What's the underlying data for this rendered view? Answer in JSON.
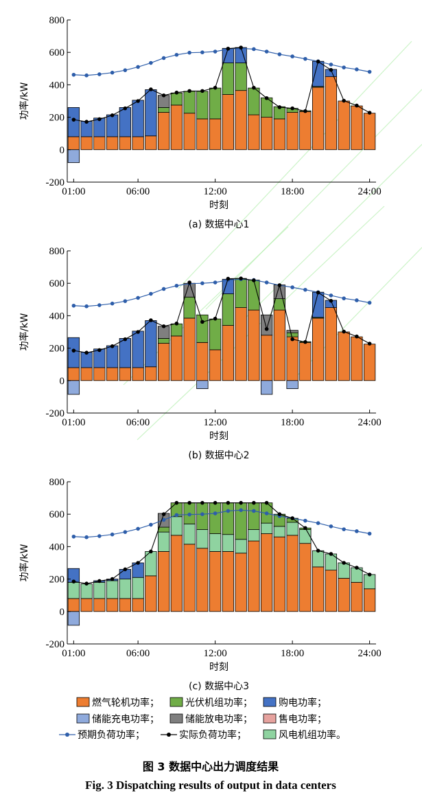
{
  "colors": {
    "gas": "#ED7D31",
    "pv": "#70AD47",
    "grid_buy": "#4472C4",
    "ess_charge": "#8FAADC",
    "ess_discharge": "#7F7F7F",
    "grid_sell": "#E6A29E",
    "wind": "#8FD3A0",
    "expected_line": "#2E5EAA",
    "actual_line": "#000000",
    "watermark": "#B6EFB0"
  },
  "x_axis_label": "时刻",
  "y_axis_label": "功率/kW",
  "figure_caption_cn": "图 3   数据中心出力调度结果",
  "figure_caption_en": "Fig. 3   Dispatching results of output in data centers",
  "legend": {
    "row1": [
      "燃气轮机功率；",
      "光伏机组功率；",
      "购电功率；"
    ],
    "row2": [
      "储能充电功率；",
      "储能放电功率；",
      "售电功率；"
    ],
    "row3": [
      "预期负荷功率；",
      "实际负荷功率；",
      "风电机组功率。"
    ]
  },
  "chart_data": [
    {
      "type": "bar",
      "subtitle": "(a) 数据中心1",
      "xlabel": "时刻",
      "ylabel": "功率/kW",
      "ylim": [
        -200,
        800
      ],
      "yticks": [
        "800",
        "600",
        "400",
        "200",
        "0",
        "-200"
      ],
      "xticks": [
        "01:00",
        "06:00",
        "12:00",
        "18:00",
        "24:00"
      ],
      "stacked": true,
      "hours": [
        1,
        2,
        3,
        4,
        5,
        6,
        7,
        8,
        9,
        10,
        11,
        12,
        13,
        14,
        15,
        16,
        17,
        18,
        19,
        20,
        21,
        22,
        23,
        24
      ],
      "series": [
        {
          "name": "燃气轮机功率",
          "key": "gas",
          "values": [
            80,
            80,
            80,
            80,
            80,
            80,
            85,
            230,
            275,
            225,
            190,
            190,
            340,
            365,
            215,
            200,
            190,
            230,
            235,
            385,
            450,
            300,
            270,
            225
          ]
        },
        {
          "name": "光伏机组功率",
          "key": "pv",
          "values": [
            0,
            0,
            0,
            0,
            0,
            0,
            0,
            30,
            75,
            135,
            170,
            190,
            195,
            170,
            165,
            120,
            75,
            25,
            5,
            5,
            0,
            0,
            0,
            0
          ]
        },
        {
          "name": "购电功率",
          "key": "grid_buy",
          "values": [
            180,
            95,
            115,
            135,
            180,
            225,
            285,
            0,
            0,
            0,
            0,
            0,
            90,
            95,
            0,
            0,
            0,
            0,
            0,
            155,
            45,
            0,
            0,
            0
          ]
        },
        {
          "name": "储能充电功率",
          "key": "ess_charge",
          "values": [
            -80,
            0,
            0,
            0,
            0,
            0,
            0,
            0,
            0,
            0,
            0,
            0,
            0,
            0,
            0,
            0,
            0,
            0,
            0,
            0,
            0,
            0,
            0,
            0
          ]
        },
        {
          "name": "储能放电功率",
          "key": "ess_discharge",
          "values": [
            0,
            0,
            0,
            0,
            0,
            0,
            0,
            75,
            0,
            0,
            0,
            0,
            0,
            0,
            0,
            0,
            0,
            0,
            0,
            0,
            0,
            0,
            0,
            0
          ]
        },
        {
          "name": "售电功率",
          "key": "grid_sell",
          "values": [
            0,
            0,
            0,
            0,
            0,
            0,
            0,
            0,
            0,
            0,
            0,
            0,
            0,
            0,
            0,
            0,
            0,
            0,
            0,
            0,
            0,
            0,
            0,
            0
          ]
        },
        {
          "name": "风电机组功率",
          "key": "wind",
          "values": [
            0,
            0,
            0,
            0,
            0,
            0,
            0,
            0,
            0,
            0,
            0,
            0,
            0,
            0,
            0,
            0,
            0,
            0,
            0,
            0,
            0,
            0,
            0,
            0
          ]
        }
      ],
      "expected_load": [
        462,
        458,
        465,
        475,
        490,
        510,
        535,
        565,
        585,
        598,
        600,
        605,
        620,
        625,
        620,
        605,
        588,
        575,
        560,
        545,
        525,
        507,
        495,
        480
      ],
      "actual_load": [
        185,
        172,
        188,
        212,
        255,
        300,
        372,
        335,
        352,
        362,
        362,
        382,
        623,
        630,
        382,
        318,
        262,
        255,
        238,
        543,
        492,
        302,
        272,
        228
      ]
    },
    {
      "type": "bar",
      "subtitle": "(b) 数据中心2",
      "xlabel": "时刻",
      "ylabel": "功率/kW",
      "ylim": [
        -200,
        800
      ],
      "yticks": [
        "800",
        "600",
        "400",
        "200",
        "0",
        "-200"
      ],
      "xticks": [
        "01:00",
        "06:00",
        "12:00",
        "18:00",
        "24:00"
      ],
      "stacked": true,
      "hours": [
        1,
        2,
        3,
        4,
        5,
        6,
        7,
        8,
        9,
        10,
        11,
        12,
        13,
        14,
        15,
        16,
        17,
        18,
        19,
        20,
        21,
        22,
        23,
        24
      ],
      "series": [
        {
          "name": "燃气轮机功率",
          "key": "gas",
          "values": [
            80,
            80,
            80,
            80,
            80,
            80,
            85,
            230,
            275,
            385,
            235,
            190,
            340,
            450,
            435,
            280,
            435,
            270,
            235,
            385,
            450,
            300,
            270,
            225
          ]
        },
        {
          "name": "光伏机组功率",
          "key": "pv",
          "values": [
            0,
            0,
            0,
            0,
            0,
            0,
            0,
            30,
            75,
            130,
            170,
            190,
            195,
            180,
            185,
            0,
            70,
            25,
            5,
            5,
            0,
            0,
            0,
            0
          ]
        },
        {
          "name": "购电功率",
          "key": "grid_buy",
          "values": [
            185,
            95,
            115,
            135,
            180,
            225,
            285,
            0,
            0,
            0,
            0,
            0,
            90,
            0,
            0,
            0,
            0,
            0,
            0,
            155,
            45,
            0,
            0,
            0
          ]
        },
        {
          "name": "储能充电功率",
          "key": "ess_charge",
          "values": [
            -85,
            0,
            0,
            0,
            0,
            0,
            0,
            0,
            0,
            0,
            -50,
            0,
            0,
            0,
            0,
            -85,
            0,
            -50,
            0,
            0,
            0,
            0,
            0,
            0
          ]
        },
        {
          "name": "储能放电功率",
          "key": "ess_discharge",
          "values": [
            0,
            0,
            0,
            0,
            0,
            0,
            0,
            75,
            0,
            85,
            0,
            0,
            0,
            0,
            0,
            125,
            85,
            15,
            0,
            0,
            0,
            0,
            0,
            0
          ]
        },
        {
          "name": "售电功率",
          "key": "grid_sell",
          "values": [
            0,
            0,
            0,
            0,
            0,
            0,
            0,
            0,
            0,
            0,
            0,
            0,
            0,
            0,
            0,
            0,
            0,
            0,
            0,
            0,
            0,
            0,
            0,
            0
          ]
        },
        {
          "name": "风电机组功率",
          "key": "wind",
          "values": [
            0,
            0,
            0,
            0,
            0,
            0,
            0,
            0,
            0,
            0,
            0,
            0,
            0,
            0,
            0,
            0,
            0,
            0,
            0,
            0,
            0,
            0,
            0,
            0
          ]
        }
      ],
      "expected_load": [
        462,
        458,
        465,
        475,
        490,
        510,
        535,
        565,
        585,
        598,
        600,
        605,
        620,
        625,
        620,
        605,
        588,
        575,
        560,
        545,
        525,
        507,
        495,
        480
      ],
      "actual_load": [
        185,
        172,
        188,
        212,
        255,
        300,
        372,
        335,
        352,
        605,
        362,
        382,
        628,
        630,
        618,
        318,
        588,
        255,
        238,
        543,
        492,
        302,
        272,
        228
      ]
    },
    {
      "type": "bar",
      "subtitle": "(c) 数据中心3",
      "xlabel": "时刻",
      "ylabel": "功率/kW",
      "ylim": [
        -200,
        800
      ],
      "yticks": [
        "800",
        "600",
        "400",
        "200",
        "0",
        "-200"
      ],
      "xticks": [
        "01:00",
        "06:00",
        "12:00",
        "18:00",
        "24:00"
      ],
      "stacked": true,
      "hours": [
        1,
        2,
        3,
        4,
        5,
        6,
        7,
        8,
        9,
        10,
        11,
        12,
        13,
        14,
        15,
        16,
        17,
        18,
        19,
        20,
        21,
        22,
        23,
        24
      ],
      "series": [
        {
          "name": "燃气轮机功率",
          "key": "gas",
          "values": [
            80,
            80,
            80,
            80,
            80,
            80,
            220,
            370,
            470,
            415,
            390,
            370,
            370,
            360,
            435,
            480,
            460,
            470,
            420,
            275,
            255,
            205,
            180,
            140
          ]
        },
        {
          "name": "光伏机组功率",
          "key": "pv",
          "values": [
            0,
            0,
            0,
            0,
            0,
            0,
            0,
            30,
            85,
            130,
            165,
            190,
            195,
            225,
            165,
            125,
            75,
            25,
            10,
            0,
            0,
            0,
            0,
            0
          ]
        },
        {
          "name": "购电功率",
          "key": "grid_buy",
          "values": [
            85,
            0,
            10,
            10,
            60,
            90,
            0,
            0,
            0,
            0,
            0,
            0,
            0,
            0,
            0,
            0,
            0,
            0,
            0,
            0,
            0,
            0,
            0,
            0
          ]
        },
        {
          "name": "储能充电功率",
          "key": "ess_charge",
          "values": [
            -85,
            0,
            0,
            0,
            0,
            0,
            0,
            0,
            0,
            0,
            0,
            0,
            0,
            0,
            0,
            0,
            0,
            0,
            0,
            0,
            0,
            0,
            0,
            0
          ]
        },
        {
          "name": "储能放电功率",
          "key": "ess_discharge",
          "values": [
            0,
            0,
            0,
            0,
            0,
            0,
            0,
            85,
            0,
            0,
            0,
            0,
            0,
            0,
            0,
            0,
            0,
            0,
            0,
            0,
            0,
            0,
            0,
            0
          ]
        },
        {
          "name": "售电功率",
          "key": "grid_sell",
          "values": [
            0,
            0,
            0,
            0,
            0,
            0,
            0,
            0,
            0,
            0,
            0,
            0,
            0,
            0,
            0,
            0,
            0,
            0,
            0,
            0,
            0,
            0,
            0,
            0
          ]
        },
        {
          "name": "风电机组功率",
          "key": "wind",
          "values": [
            100,
            90,
            100,
            110,
            120,
            130,
            150,
            120,
            115,
            125,
            115,
            110,
            105,
            85,
            70,
            65,
            65,
            80,
            85,
            100,
            100,
            95,
            90,
            88
          ]
        }
      ],
      "expected_load": [
        462,
        458,
        465,
        475,
        490,
        510,
        535,
        565,
        595,
        598,
        600,
        605,
        620,
        625,
        620,
        605,
        588,
        575,
        560,
        545,
        525,
        507,
        495,
        480
      ],
      "actual_load": [
        185,
        172,
        188,
        200,
        260,
        300,
        370,
        600,
        670,
        670,
        670,
        670,
        670,
        670,
        670,
        670,
        600,
        575,
        515,
        375,
        355,
        300,
        270,
        228
      ]
    }
  ]
}
